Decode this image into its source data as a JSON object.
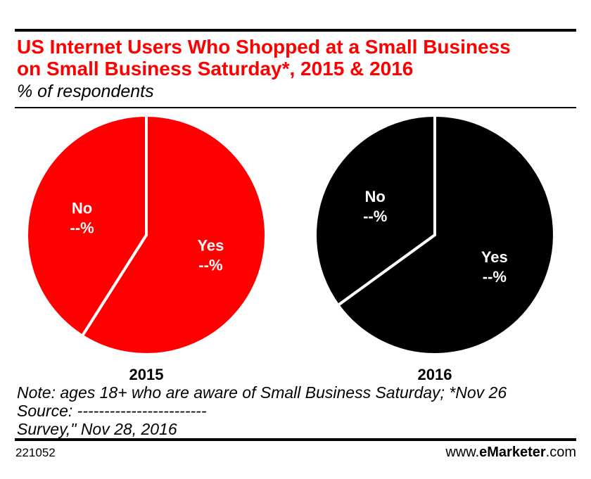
{
  "title_line1": "US Internet Users Who Shopped at a Small Business",
  "title_line2": "on Small Business Saturday*, 2015 & 2016",
  "subtitle": "% of respondents",
  "colors": {
    "title": "#ff0000",
    "pie_2015": "#ff0000",
    "pie_2016": "#000000",
    "separator": "#ffffff"
  },
  "chart_data": [
    {
      "type": "pie",
      "title": "2015",
      "categories": [
        "Yes",
        "No"
      ],
      "values": [
        59,
        41
      ],
      "labels": [
        "--%",
        "--%"
      ],
      "color": "#ff0000"
    },
    {
      "type": "pie",
      "title": "2016",
      "categories": [
        "Yes",
        "No"
      ],
      "values": [
        65,
        35
      ],
      "labels": [
        "--%",
        "--%"
      ],
      "color": "#000000"
    }
  ],
  "notes": {
    "note": "Note: ages 18+ who are aware of Small Business Saturday; *Nov 26",
    "source": "Source: ------------------------",
    "source_tail": "Survey,\" Nov 28, 2016"
  },
  "footer": {
    "chart_id": "221052",
    "site_prefix": "www.",
    "site_brand": "eMarketer",
    "site_suffix": ".com"
  }
}
